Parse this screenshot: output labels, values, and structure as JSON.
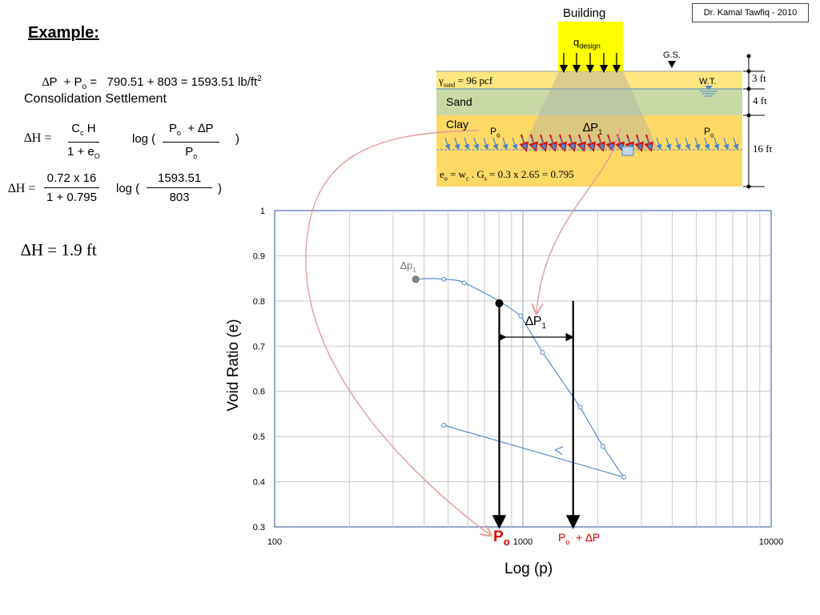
{
  "author": "Dr. Kamal Tawfiq - 2010",
  "slide": {
    "title": "Example:",
    "eq1": {
      "d": "∆",
      "p": "P  + P",
      "sub": "o",
      "rest": " =   790.51 + 803 = 1593.51 lb/ft",
      "sup": "2"
    },
    "heading": "Consolidation Settlement",
    "eq2": {
      "lhs": "∆H =",
      "num_c": "C",
      "num_csub": "c",
      "num_h": " H",
      "den": "1 + e",
      "den_sub": "O",
      "log": "log (",
      "num2_p": "P",
      "num2_sub": "o",
      "num2_rest": "  + ∆P",
      "den2_p": "P",
      "den2_sub": "o",
      "close": ")"
    },
    "eq3": {
      "lhs": "∆H =",
      "num": "0.72 x 16",
      "den": "1 + 0.795",
      "log": "log (",
      "num2": "1593.51",
      "den2": "803",
      "close": ")"
    },
    "result": "∆H = 1.9 ft"
  },
  "soil": {
    "building": "Building",
    "q": "q",
    "q_sub": "design",
    "gs": "G.S.",
    "wt": "W.T.",
    "gamma": "γ",
    "gamma_sub": "sand",
    "gamma_rest": " = 96 pcf",
    "sand": "Sand",
    "clay": "Clay",
    "po": "P",
    "po_sub": "o",
    "dp": "∆P",
    "dp_sub": "1",
    "e_line": {
      "e": "e",
      "e_sub": "o",
      "w": " = w",
      "w_sub": "c",
      "g": " . G",
      "g_sub": "s",
      "rest": " = 0.3 x 2.65 = 0.795"
    },
    "dims": [
      "3 ft",
      "4 ft",
      "16 ft"
    ],
    "colors": {
      "building": "#ffff00",
      "sand": "#ffe680",
      "sand_sat": "#c9d9a6",
      "clay": "#ffd966",
      "arrow_red": "#e00000",
      "arrow_blue": "#4a86c8"
    }
  },
  "chart_data": {
    "type": "scatter",
    "xscale": "log",
    "xlim": [
      100,
      10000
    ],
    "ylim": [
      0.3,
      1.0
    ],
    "xticks": [
      "100",
      "1000",
      "10000"
    ],
    "yticks": [
      "0.3",
      "0.4",
      "0.5",
      "0.6",
      "0.7",
      "0.8",
      "0.9",
      "1"
    ],
    "xlabel": "Log (p)",
    "ylabel": "Void Ratio (e)",
    "series": [
      {
        "values": [
          [
            370,
            0.848
          ],
          [
            480,
            0.848
          ],
          [
            580,
            0.84
          ],
          [
            980,
            0.767
          ],
          [
            1200,
            0.686
          ],
          [
            1700,
            0.565
          ],
          [
            2100,
            0.478
          ],
          [
            2550,
            0.41
          ]
        ]
      },
      {
        "values": [
          [
            2550,
            0.41
          ],
          [
            480,
            0.525
          ]
        ]
      }
    ],
    "annotations": {
      "start_label": "∆p",
      "start_sub": "1",
      "po_value": 803,
      "po_e": 0.795,
      "po_label": "P",
      "po_sub": "o",
      "pdp_value": 1593.51,
      "pdp_label": "P",
      "pdp_sub": "o",
      "pdp_rest": "  + ∆P",
      "dp_label": "∆P",
      "dp_sub": "1"
    }
  }
}
